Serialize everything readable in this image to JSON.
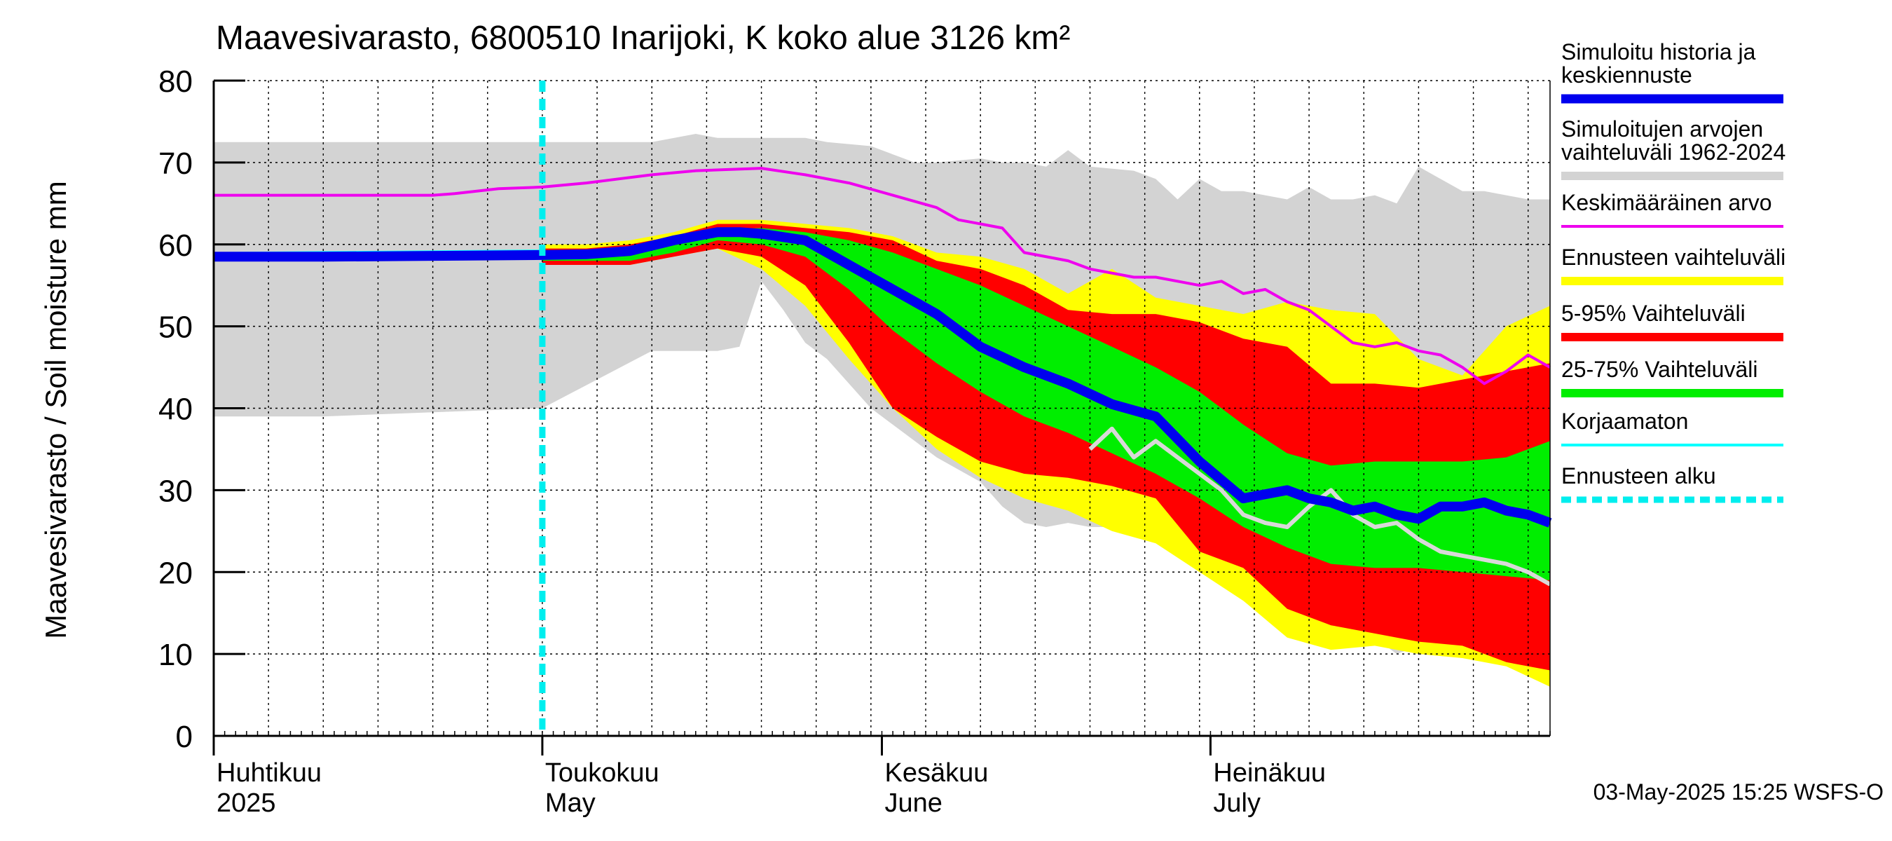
{
  "chart_data": {
    "type": "area",
    "title": "Maavesivarasto, 6800510 Inarijoki, K koko alue 3126 km²",
    "ylabel": "Maavesivarasto / Soil moisture   mm",
    "ylim": [
      0,
      80
    ],
    "yticks": [
      0,
      10,
      20,
      30,
      40,
      50,
      60,
      70,
      80
    ],
    "xlim_days": [
      0,
      122
    ],
    "x_unit": "days since 2025-04-01",
    "month_labels": [
      {
        "fi": "Huhtikuu",
        "en": "2025",
        "day": 0
      },
      {
        "fi": "Toukokuu",
        "en": "May",
        "day": 30
      },
      {
        "fi": "Kesäkuu",
        "en": "June",
        "day": 61
      },
      {
        "fi": "Heinäkuu",
        "en": "July",
        "day": 91
      }
    ],
    "forecast_start_day": 30,
    "timestamp": "03-May-2025 15:25 WSFS-O",
    "legend": [
      {
        "key": "sim",
        "label": [
          "Simuloitu historia ja",
          "keskiennuste"
        ],
        "color": "#0000ee",
        "style": "thick"
      },
      {
        "key": "range",
        "label": [
          "Simuloitujen arvojen",
          "vaihteluväli 1962-2024"
        ],
        "color": "#d3d3d3",
        "style": "band"
      },
      {
        "key": "mean",
        "label": [
          "Keskimääräinen arvo"
        ],
        "color": "#ee00ee",
        "style": "line"
      },
      {
        "key": "fc_range",
        "label": [
          "Ennusteen vaihteluväli"
        ],
        "color": "#ffff00",
        "style": "band"
      },
      {
        "key": "p5_95",
        "label": [
          "5-95% Vaihteluväli"
        ],
        "color": "#ff0000",
        "style": "band"
      },
      {
        "key": "p25_75",
        "label": [
          "25-75% Vaihteluväli"
        ],
        "color": "#00ee00",
        "style": "band"
      },
      {
        "key": "uncorrected",
        "label": [
          "Korjaamaton"
        ],
        "color": "#00ffff",
        "style": "line"
      },
      {
        "key": "fc_start",
        "label": [
          "Ennusteen alku"
        ],
        "color": "#00eeee",
        "style": "dashed"
      }
    ],
    "series": {
      "hist_range": {
        "x": [
          0,
          10,
          20,
          30,
          40,
          44,
          46,
          48,
          50,
          52,
          54,
          56,
          60,
          62,
          64,
          66,
          70,
          72,
          74,
          76,
          78,
          80,
          84,
          86,
          88,
          90,
          92,
          94,
          98,
          100,
          102,
          104,
          106,
          108,
          110,
          112,
          114,
          116,
          118,
          120,
          122
        ],
        "upper": [
          72.5,
          72.5,
          72.5,
          72.5,
          72.5,
          73.5,
          73,
          73,
          73,
          73,
          73,
          72.5,
          72,
          71,
          70,
          70,
          70.5,
          70,
          70,
          69.5,
          71.5,
          69.5,
          69,
          68,
          65.5,
          68,
          66.5,
          66.5,
          65.5,
          67,
          65.5,
          65.5,
          66,
          65,
          69.5,
          68,
          66.5,
          66.5,
          66,
          65.5,
          65.5
        ],
        "lower": [
          39,
          39,
          39.5,
          40,
          47,
          47,
          47,
          47.5,
          55.5,
          52,
          48,
          46,
          40,
          38,
          36,
          34,
          31,
          28,
          26,
          25.5,
          26,
          25.5,
          25.5,
          25,
          24.5,
          23.5,
          22,
          20.5,
          17,
          15,
          14.5,
          14,
          12,
          10,
          11,
          11.5,
          10,
          9.5,
          9,
          8.5,
          7
        ]
      },
      "fc_range": {
        "x": [
          30,
          34,
          38,
          42,
          46,
          50,
          54,
          58,
          62,
          66,
          70,
          74,
          78,
          82,
          86,
          90,
          94,
          98,
          102,
          106,
          110,
          114,
          118,
          122
        ],
        "upper": [
          60,
          60,
          60.5,
          61.5,
          63,
          63,
          62.5,
          62,
          61,
          59,
          58.5,
          57,
          54,
          57,
          53.5,
          52.5,
          51.5,
          53,
          52,
          51.5,
          46,
          44,
          50,
          52.5
        ],
        "lower": [
          57.5,
          57.5,
          57.5,
          58.5,
          59.5,
          57,
          52.5,
          46,
          40,
          35,
          31.5,
          29,
          27.5,
          25,
          23.5,
          20,
          16.5,
          12,
          10.5,
          11,
          10,
          9.5,
          8.5,
          6
        ]
      },
      "p5_95": {
        "x": [
          30,
          34,
          38,
          42,
          46,
          50,
          54,
          58,
          62,
          66,
          70,
          74,
          78,
          82,
          86,
          90,
          94,
          98,
          102,
          106,
          110,
          114,
          118,
          122
        ],
        "upper": [
          59.5,
          59.5,
          60,
          61,
          62.5,
          62.5,
          62,
          61.5,
          60.5,
          58,
          57,
          55,
          52,
          51.5,
          51.5,
          50.5,
          48.5,
          47.5,
          43,
          43,
          42.5,
          43.5,
          44.5,
          45.5
        ],
        "lower": [
          57.5,
          57.5,
          57.5,
          58.5,
          59.5,
          58.5,
          55,
          48,
          40,
          36.5,
          33.5,
          32,
          31.5,
          30.5,
          29,
          22.5,
          20.5,
          15.5,
          13.5,
          12.5,
          11.5,
          11,
          9,
          8
        ]
      },
      "p25_75": {
        "x": [
          30,
          34,
          38,
          42,
          46,
          50,
          54,
          58,
          62,
          66,
          70,
          74,
          78,
          82,
          86,
          90,
          94,
          98,
          102,
          106,
          110,
          114,
          118,
          122
        ],
        "upper": [
          59,
          59,
          59.5,
          60.5,
          61.8,
          62,
          61.5,
          60.5,
          59,
          57,
          55,
          52.5,
          50,
          47.5,
          45,
          42,
          38,
          34.5,
          33,
          33.5,
          33.5,
          33.5,
          34,
          36
        ],
        "lower": [
          58,
          58,
          58,
          59,
          60.5,
          60,
          58.5,
          54.5,
          49.5,
          45.5,
          42,
          39,
          37,
          34.5,
          32,
          29,
          25.5,
          23,
          21,
          20.5,
          20.5,
          20,
          19.5,
          19
        ]
      },
      "mean": {
        "x": [
          0,
          20,
          22,
          26,
          30,
          34,
          40,
          44,
          50,
          54,
          58,
          62,
          66,
          68,
          70,
          72,
          74,
          78,
          80,
          84,
          86,
          88,
          90,
          92,
          94,
          96,
          98,
          100,
          104,
          106,
          108,
          110,
          112,
          114,
          116,
          118,
          120,
          122
        ],
        "values": [
          66,
          66,
          66.2,
          66.8,
          67,
          67.5,
          68.5,
          69,
          69.3,
          68.5,
          67.5,
          66,
          64.5,
          63,
          62.5,
          62,
          59,
          58,
          57,
          56,
          56,
          55.5,
          55,
          55.5,
          54,
          54.5,
          53,
          52,
          48,
          47.5,
          48,
          47,
          46.5,
          45,
          43,
          44.5,
          46.5,
          45
        ]
      },
      "sim": {
        "x": [
          0,
          10,
          20,
          30,
          34,
          38,
          42,
          46,
          48,
          50,
          54,
          58,
          62,
          66,
          70,
          74,
          78,
          82,
          86,
          90,
          94,
          98,
          100,
          102,
          104,
          106,
          108,
          110,
          112,
          114,
          116,
          118,
          120,
          122
        ],
        "values": [
          58.5,
          58.5,
          58.6,
          58.7,
          58.8,
          59.2,
          60.5,
          61.5,
          61.5,
          61.3,
          60.5,
          57.5,
          54.5,
          51.5,
          47.5,
          45,
          43,
          40.5,
          39,
          33.5,
          29,
          30,
          29,
          28.5,
          27.5,
          28,
          27,
          26.5,
          28,
          28,
          28.5,
          27.5,
          27,
          26
        ]
      },
      "uncorrected": {
        "x": [
          0,
          10,
          20,
          30
        ],
        "values": [
          58.9,
          59,
          59.1,
          59.2
        ]
      },
      "gray_member": {
        "x": [
          80,
          82,
          84,
          86,
          88,
          92,
          94,
          96,
          98,
          100,
          102,
          104,
          106,
          108,
          110,
          112,
          114,
          116,
          118,
          120,
          122
        ],
        "values": [
          35,
          37.5,
          34,
          36,
          34,
          30,
          27,
          26,
          25.5,
          28,
          30,
          27,
          25.5,
          26,
          24,
          22.5,
          22,
          21.5,
          21,
          20,
          18.5
        ]
      }
    }
  }
}
